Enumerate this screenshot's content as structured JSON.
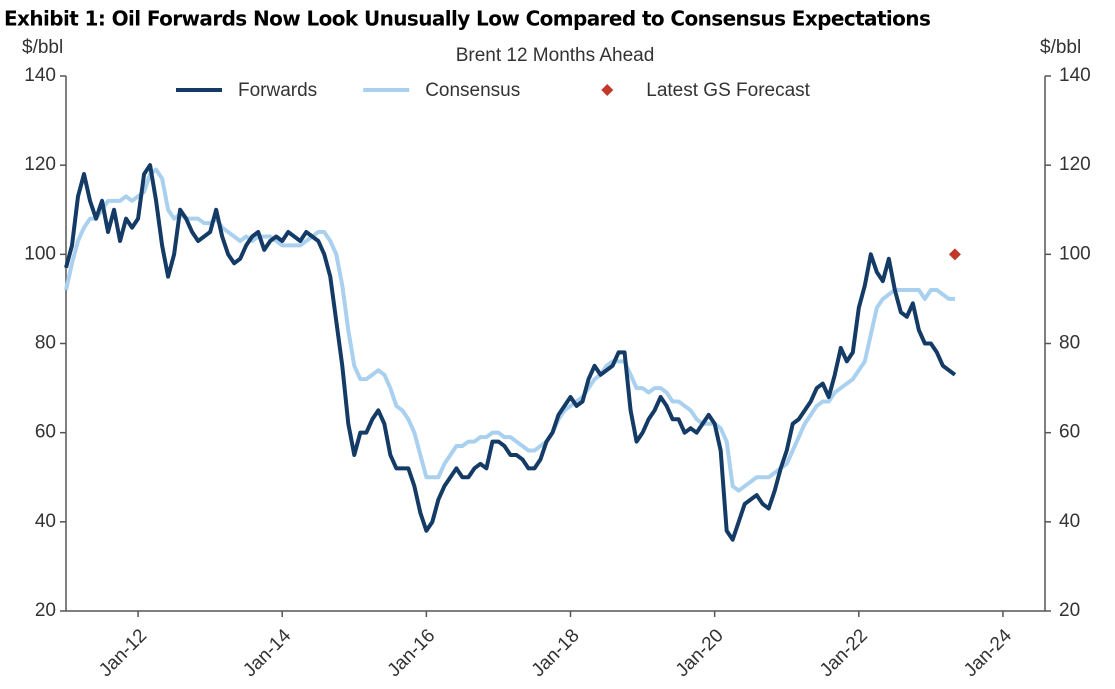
{
  "chart_data": {
    "type": "line",
    "title": "Exhibit 1: Oil Forwards Now Look Unusually Low Compared to Consensus Expectations",
    "subtitle": "Brent 12 Months Ahead",
    "y_label": "$/bbl",
    "y2_label": "$/bbl",
    "x": [
      "2011-01",
      "2011-02",
      "2011-03",
      "2011-04",
      "2011-05",
      "2011-06",
      "2011-07",
      "2011-08",
      "2011-09",
      "2011-10",
      "2011-11",
      "2011-12",
      "2012-01",
      "2012-02",
      "2012-03",
      "2012-04",
      "2012-05",
      "2012-06",
      "2012-07",
      "2012-08",
      "2012-09",
      "2012-10",
      "2012-11",
      "2012-12",
      "2013-01",
      "2013-02",
      "2013-03",
      "2013-04",
      "2013-05",
      "2013-06",
      "2013-07",
      "2013-08",
      "2013-09",
      "2013-10",
      "2013-11",
      "2013-12",
      "2014-01",
      "2014-02",
      "2014-03",
      "2014-04",
      "2014-05",
      "2014-06",
      "2014-07",
      "2014-08",
      "2014-09",
      "2014-10",
      "2014-11",
      "2014-12",
      "2015-01",
      "2015-02",
      "2015-03",
      "2015-04",
      "2015-05",
      "2015-06",
      "2015-07",
      "2015-08",
      "2015-09",
      "2015-10",
      "2015-11",
      "2015-12",
      "2016-01",
      "2016-02",
      "2016-03",
      "2016-04",
      "2016-05",
      "2016-06",
      "2016-07",
      "2016-08",
      "2016-09",
      "2016-10",
      "2016-11",
      "2016-12",
      "2017-01",
      "2017-02",
      "2017-03",
      "2017-04",
      "2017-05",
      "2017-06",
      "2017-07",
      "2017-08",
      "2017-09",
      "2017-10",
      "2017-11",
      "2017-12",
      "2018-01",
      "2018-02",
      "2018-03",
      "2018-04",
      "2018-05",
      "2018-06",
      "2018-07",
      "2018-08",
      "2018-09",
      "2018-10",
      "2018-11",
      "2018-12",
      "2019-01",
      "2019-02",
      "2019-03",
      "2019-04",
      "2019-05",
      "2019-06",
      "2019-07",
      "2019-08",
      "2019-09",
      "2019-10",
      "2019-11",
      "2019-12",
      "2020-01",
      "2020-02",
      "2020-03",
      "2020-04",
      "2020-05",
      "2020-06",
      "2020-07",
      "2020-08",
      "2020-09",
      "2020-10",
      "2020-11",
      "2020-12",
      "2021-01",
      "2021-02",
      "2021-03",
      "2021-04",
      "2021-05",
      "2021-06",
      "2021-07",
      "2021-08",
      "2021-09",
      "2021-10",
      "2021-11",
      "2021-12",
      "2022-01",
      "2022-02",
      "2022-03",
      "2022-04",
      "2022-05",
      "2022-06",
      "2022-07",
      "2022-08",
      "2022-09",
      "2022-10",
      "2022-11",
      "2022-12",
      "2023-01",
      "2023-02",
      "2023-03",
      "2023-04",
      "2023-05"
    ],
    "series": [
      {
        "name": "Forwards",
        "color": "#143a66",
        "values": [
          97,
          102,
          113,
          118,
          112,
          108,
          112,
          105,
          110,
          103,
          108,
          106,
          108,
          118,
          120,
          112,
          102,
          95,
          100,
          110,
          108,
          105,
          103,
          104,
          105,
          110,
          104,
          100,
          98,
          99,
          102,
          104,
          105,
          101,
          103,
          104,
          103,
          105,
          104,
          103,
          105,
          104,
          103,
          100,
          95,
          85,
          75,
          62,
          55,
          60,
          60,
          63,
          65,
          62,
          55,
          52,
          52,
          52,
          48,
          42,
          38,
          40,
          45,
          48,
          50,
          52,
          50,
          50,
          52,
          53,
          52,
          58,
          58,
          57,
          55,
          55,
          54,
          52,
          52,
          54,
          58,
          60,
          64,
          66,
          68,
          66,
          67,
          72,
          75,
          73,
          74,
          75,
          78,
          78,
          65,
          58,
          60,
          63,
          65,
          68,
          66,
          63,
          63,
          60,
          61,
          60,
          62,
          64,
          62,
          56,
          38,
          36,
          40,
          44,
          45,
          46,
          44,
          43,
          47,
          52,
          56,
          62,
          63,
          65,
          67,
          70,
          71,
          68,
          73,
          79,
          76,
          78,
          88,
          93,
          100,
          96,
          94,
          99,
          92,
          87,
          86,
          89,
          83,
          80,
          80,
          78,
          75,
          74,
          73
        ]
      },
      {
        "name": "Consensus",
        "color": "#a9d0ee",
        "values": [
          92,
          98,
          103,
          106,
          108,
          108,
          110,
          112,
          112,
          112,
          113,
          112,
          113,
          114,
          118,
          119,
          117,
          110,
          108,
          109,
          108,
          108,
          108,
          107,
          107,
          108,
          106,
          105,
          104,
          103,
          104,
          103,
          104,
          104,
          104,
          103,
          102,
          102,
          102,
          102,
          103,
          104,
          105,
          105,
          103,
          100,
          93,
          83,
          75,
          72,
          72,
          73,
          74,
          73,
          70,
          66,
          65,
          63,
          60,
          55,
          50,
          50,
          50,
          53,
          55,
          57,
          57,
          58,
          58,
          59,
          59,
          60,
          60,
          59,
          59,
          58,
          57,
          56,
          56,
          57,
          58,
          60,
          63,
          65,
          66,
          67,
          68,
          70,
          72,
          73,
          75,
          76,
          76,
          76,
          73,
          70,
          70,
          69,
          70,
          70,
          69,
          67,
          67,
          66,
          65,
          63,
          62,
          62,
          62,
          61,
          58,
          48,
          47,
          48,
          49,
          50,
          50,
          50,
          51,
          52,
          53,
          56,
          59,
          62,
          64,
          66,
          67,
          67,
          69,
          70,
          71,
          72,
          74,
          76,
          82,
          88,
          90,
          91,
          92,
          92,
          92,
          92,
          92,
          90,
          92,
          92,
          91,
          90,
          90
        ]
      }
    ],
    "markers": [
      {
        "name": "Latest GS Forecast",
        "color": "#c0392b",
        "x": "2023-05",
        "y": 100
      }
    ],
    "xlim": [
      "2011-01",
      "2024-08"
    ],
    "xticks": [
      {
        "value": "2012-01",
        "label": "Jan-12"
      },
      {
        "value": "2014-01",
        "label": "Jan-14"
      },
      {
        "value": "2016-01",
        "label": "Jan-16"
      },
      {
        "value": "2018-01",
        "label": "Jan-18"
      },
      {
        "value": "2020-01",
        "label": "Jan-20"
      },
      {
        "value": "2022-01",
        "label": "Jan-22"
      },
      {
        "value": "2024-01",
        "label": "Jan-24"
      }
    ],
    "ylim": [
      20,
      140
    ],
    "yticks": [
      20,
      40,
      60,
      80,
      100,
      120,
      140
    ],
    "y2lim": [
      20,
      140
    ],
    "y2ticks": [
      20,
      40,
      60,
      80,
      100,
      120,
      140
    ],
    "grid": false
  }
}
